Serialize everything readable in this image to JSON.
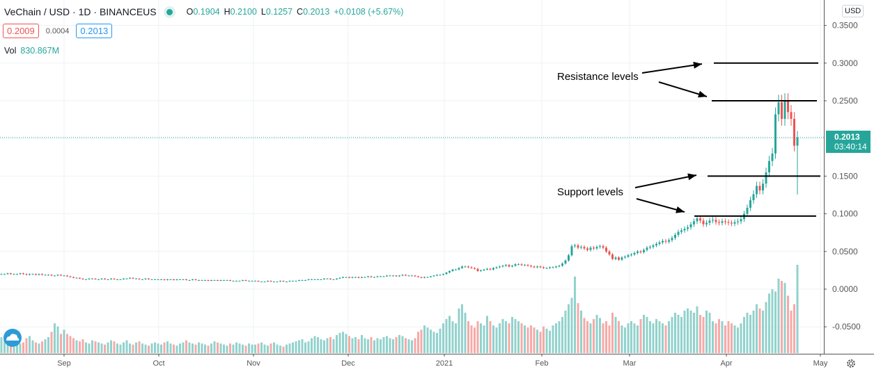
{
  "header": {
    "symbol": "VeChain / USD · 1D · BINANCEUS",
    "open_label": "O",
    "open": "0.1904",
    "high_label": "H",
    "high": "0.2100",
    "low_label": "L",
    "low": "0.1257",
    "close_label": "C",
    "close": "0.2013",
    "change": "+0.0108 (+5.67%)",
    "bid": "0.2009",
    "spread": "0.0004",
    "ask": "0.2013",
    "vol_label": "Vol",
    "vol": "830.867M"
  },
  "axis": {
    "currency": "USD",
    "current_price": "0.2013",
    "countdown": "03:40:14"
  },
  "annotations": {
    "resistance": "Resistance levels",
    "support": "Support levels",
    "resistance_levels": [
      0.3,
      0.25
    ],
    "support_levels": [
      0.15,
      0.097
    ]
  },
  "colors": {
    "up": "#26a69a",
    "down": "#ef5350",
    "up_volume": "#92d2cc",
    "down_volume": "#f7a9a7",
    "grid": "#eef1f6"
  },
  "chart_data": {
    "type": "candlestick",
    "title": "VeChain / USD · 1D · BINANCEUS",
    "x_ticks": [
      "Sep",
      "Oct",
      "Nov",
      "Dec",
      "2021",
      "Feb",
      "Mar",
      "Apr",
      "May"
    ],
    "y_ticks": [
      "0.3500",
      "0.3000",
      "0.2500",
      "0.1500",
      "0.1000",
      "0.0500",
      "0.0000",
      "-0.0500"
    ],
    "ylim": [
      -0.085,
      0.37
    ],
    "grid": true,
    "first_date": "2020-08-12",
    "last_candle": {
      "open": 0.1904,
      "high": 0.21,
      "low": 0.1257,
      "close": 0.2013
    },
    "closes": [
      0.02,
      0.02,
      0.021,
      0.02,
      0.02,
      0.02,
      0.021,
      0.02,
      0.019,
      0.02,
      0.02,
      0.019,
      0.02,
      0.019,
      0.019,
      0.019,
      0.018,
      0.018,
      0.019,
      0.018,
      0.018,
      0.017,
      0.016,
      0.015,
      0.015,
      0.014,
      0.013,
      0.013,
      0.014,
      0.014,
      0.013,
      0.013,
      0.014,
      0.013,
      0.013,
      0.014,
      0.013,
      0.013,
      0.013,
      0.014,
      0.014,
      0.015,
      0.014,
      0.014,
      0.013,
      0.013,
      0.014,
      0.013,
      0.013,
      0.013,
      0.013,
      0.013,
      0.012,
      0.013,
      0.013,
      0.012,
      0.013,
      0.013,
      0.013,
      0.012,
      0.012,
      0.013,
      0.012,
      0.012,
      0.012,
      0.012,
      0.011,
      0.012,
      0.012,
      0.011,
      0.012,
      0.012,
      0.012,
      0.011,
      0.011,
      0.011,
      0.011,
      0.012,
      0.011,
      0.011,
      0.011,
      0.011,
      0.01,
      0.01,
      0.01,
      0.011,
      0.01,
      0.01,
      0.01,
      0.011,
      0.01,
      0.01,
      0.011,
      0.011,
      0.011,
      0.012,
      0.012,
      0.012,
      0.013,
      0.013,
      0.013,
      0.013,
      0.013,
      0.014,
      0.014,
      0.013,
      0.013,
      0.014,
      0.015,
      0.016,
      0.016,
      0.015,
      0.016,
      0.016,
      0.015,
      0.016,
      0.016,
      0.017,
      0.016,
      0.016,
      0.017,
      0.017,
      0.017,
      0.018,
      0.018,
      0.018,
      0.017,
      0.018,
      0.019,
      0.018,
      0.018,
      0.018,
      0.017,
      0.016,
      0.015,
      0.016,
      0.016,
      0.017,
      0.018,
      0.019,
      0.019,
      0.02,
      0.022,
      0.024,
      0.026,
      0.026,
      0.028,
      0.03,
      0.03,
      0.029,
      0.028,
      0.027,
      0.024,
      0.025,
      0.026,
      0.027,
      0.026,
      0.028,
      0.029,
      0.03,
      0.031,
      0.032,
      0.03,
      0.031,
      0.033,
      0.033,
      0.032,
      0.032,
      0.031,
      0.03,
      0.029,
      0.03,
      0.029,
      0.028,
      0.028,
      0.029,
      0.029,
      0.03,
      0.031,
      0.034,
      0.038,
      0.045,
      0.057,
      0.058,
      0.055,
      0.056,
      0.054,
      0.052,
      0.055,
      0.054,
      0.056,
      0.057,
      0.055,
      0.05,
      0.046,
      0.04,
      0.042,
      0.039,
      0.042,
      0.043,
      0.045,
      0.046,
      0.048,
      0.05,
      0.049,
      0.052,
      0.055,
      0.056,
      0.058,
      0.06,
      0.062,
      0.064,
      0.063,
      0.065,
      0.068,
      0.072,
      0.076,
      0.078,
      0.08,
      0.082,
      0.086,
      0.09,
      0.094,
      0.091,
      0.086,
      0.088,
      0.091,
      0.092,
      0.089,
      0.088,
      0.09,
      0.089,
      0.088,
      0.087,
      0.089,
      0.09,
      0.093,
      0.1,
      0.108,
      0.118,
      0.126,
      0.137,
      0.131,
      0.14,
      0.155,
      0.17,
      0.18,
      0.232,
      0.248,
      0.226,
      0.25,
      0.235,
      0.226,
      0.1904,
      0.2013
    ],
    "volumes_millions": [
      150,
      120,
      100,
      180,
      130,
      110,
      90,
      100,
      140,
      160,
      120,
      100,
      90,
      110,
      130,
      150,
      200,
      280,
      250,
      180,
      220,
      180,
      160,
      140,
      120,
      110,
      130,
      100,
      90,
      120,
      110,
      100,
      90,
      80,
      100,
      120,
      110,
      90,
      80,
      100,
      120,
      90,
      80,
      100,
      110,
      90,
      80,
      70,
      90,
      100,
      90,
      80,
      100,
      110,
      90,
      80,
      70,
      90,
      100,
      120,
      100,
      90,
      80,
      100,
      90,
      80,
      70,
      90,
      110,
      100,
      90,
      80,
      70,
      90,
      80,
      100,
      90,
      80,
      70,
      90,
      80,
      80,
      90,
      100,
      80,
      70,
      90,
      100,
      80,
      70,
      60,
      80,
      90,
      100,
      110,
      120,
      130,
      100,
      110,
      140,
      160,
      150,
      130,
      120,
      140,
      150,
      130,
      170,
      190,
      200,
      180,
      160,
      140,
      150,
      130,
      170,
      140,
      130,
      150,
      120,
      140,
      130,
      150,
      160,
      140,
      130,
      150,
      170,
      160,
      140,
      130,
      120,
      140,
      200,
      220,
      260,
      240,
      220,
      200,
      190,
      230,
      280,
      320,
      350,
      300,
      280,
      420,
      460,
      380,
      300,
      260,
      240,
      300,
      280,
      260,
      350,
      300,
      260,
      240,
      280,
      320,
      300,
      280,
      340,
      320,
      300,
      280,
      260,
      240,
      260,
      240,
      220,
      200,
      250,
      230,
      210,
      260,
      280,
      300,
      340,
      400,
      460,
      520,
      720,
      470,
      400,
      330,
      300,
      280,
      320,
      360,
      330,
      280,
      300,
      260,
      380,
      340,
      300,
      260,
      240,
      280,
      300,
      280,
      260,
      320,
      360,
      340,
      300,
      280,
      320,
      300,
      280,
      260,
      300,
      340,
      380,
      360,
      340,
      400,
      420,
      400,
      380,
      440,
      360,
      340,
      400,
      380,
      300,
      280,
      320,
      300,
      260,
      300,
      280,
      260,
      240,
      280,
      340,
      380,
      360,
      400,
      460,
      420,
      400,
      480,
      560,
      600,
      580,
      700,
      680,
      660,
      540,
      400,
      460,
      830.867
    ]
  }
}
